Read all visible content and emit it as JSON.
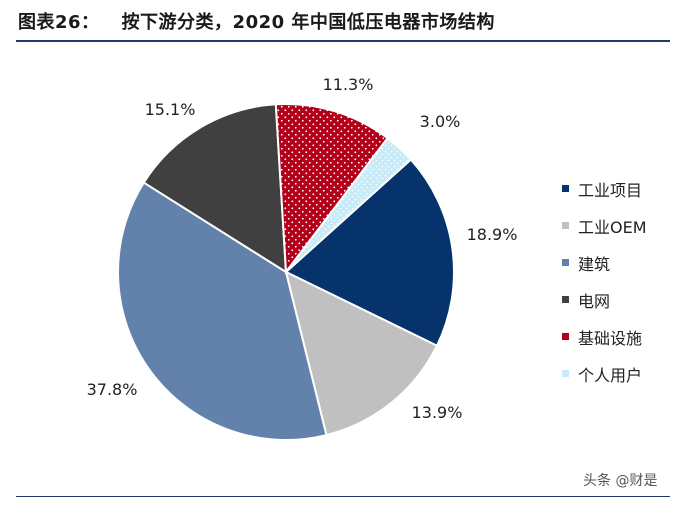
{
  "header": {
    "figure_label": "图表26：",
    "title": "按下游分类，2020 年中国低压电器市场结构"
  },
  "watermark": "头条 @财是",
  "colors": {
    "industrial_projects": "#06336c",
    "industrial_oem": "#c0c0c0",
    "construction": "#6382ab",
    "grid": "#404040",
    "infrastructure": "#b2001b",
    "personal": "#c7ecf8"
  },
  "chart_data": {
    "type": "pie",
    "title": "按下游分类，2020 年中国低压电器市场结构",
    "start_angle_deg": 48,
    "direction": "clockwise",
    "legend_position": "right",
    "slices": [
      {
        "label": "工业项目",
        "value": 18.9,
        "value_label": "18.9%",
        "color": "#06336c",
        "pattern": "solid"
      },
      {
        "label": "工业OEM",
        "value": 13.9,
        "value_label": "13.9%",
        "color": "#c0c0c0",
        "pattern": "solid"
      },
      {
        "label": "建筑",
        "value": 37.8,
        "value_label": "37.8%",
        "color": "#6382ab",
        "pattern": "solid"
      },
      {
        "label": "电网",
        "value": 15.1,
        "value_label": "15.1%",
        "color": "#404040",
        "pattern": "solid"
      },
      {
        "label": "基础设施",
        "value": 11.3,
        "value_label": "11.3%",
        "color": "#b2001b",
        "pattern": "dotted"
      },
      {
        "label": "个人用户",
        "value": 3.0,
        "value_label": "3.0%",
        "color": "#c7ecf8",
        "pattern": "dotted"
      }
    ]
  }
}
